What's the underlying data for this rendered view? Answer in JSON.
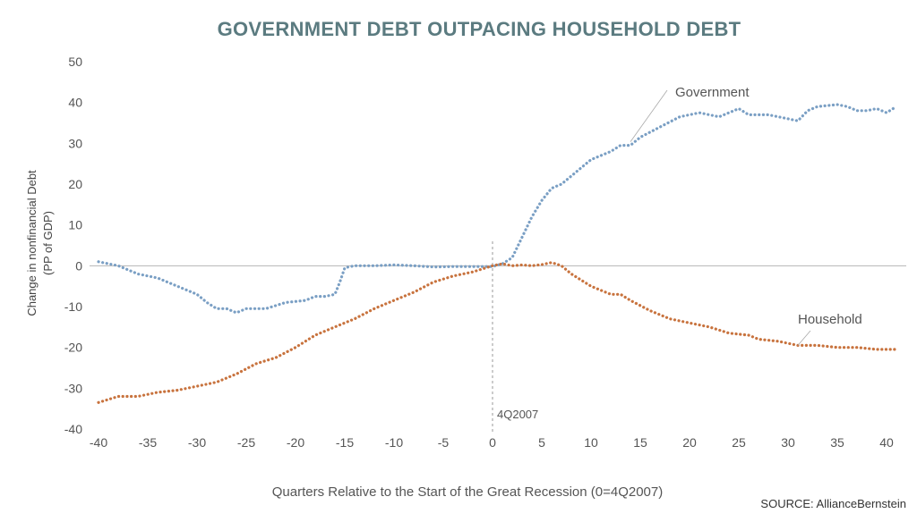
{
  "chart_data": {
    "type": "line",
    "title": "GOVERNMENT DEBT OUTPACING HOUSEHOLD DEBT",
    "ylabel_line1": "Change in nonfinancial Debt",
    "ylabel_line2": "(PP of GDP)",
    "xlabel": "Quarters Relative to the Start of the Great Recession (0=4Q2007)",
    "source": "SOURCE: AllianceBernstein",
    "xlim": [
      -41,
      42
    ],
    "ylim": [
      -40,
      50
    ],
    "x_ticks": [
      -40,
      -35,
      -30,
      -25,
      -20,
      -15,
      -10,
      -5,
      0,
      5,
      10,
      15,
      20,
      25,
      30,
      35,
      40
    ],
    "y_ticks": [
      50,
      40,
      30,
      20,
      10,
      0,
      -10,
      -20,
      -30,
      -40
    ],
    "zero_line": true,
    "annotation": {
      "x": 0,
      "label": "4Q2007"
    },
    "series": [
      {
        "name": "Government",
        "color": "#7a9fc4",
        "style": "dotted",
        "label_at_x": 14,
        "points": [
          [
            -40,
            1
          ],
          [
            -38,
            0
          ],
          [
            -36,
            -2
          ],
          [
            -34,
            -3
          ],
          [
            -32,
            -5
          ],
          [
            -30,
            -7
          ],
          [
            -29,
            -9
          ],
          [
            -28,
            -10.5
          ],
          [
            -27,
            -10.5
          ],
          [
            -26,
            -11.5
          ],
          [
            -25,
            -10.5
          ],
          [
            -23,
            -10.5
          ],
          [
            -21,
            -9
          ],
          [
            -19,
            -8.5
          ],
          [
            -18,
            -7.5
          ],
          [
            -17,
            -7.5
          ],
          [
            -16,
            -7
          ],
          [
            -15.5,
            -4
          ],
          [
            -15,
            -0.5
          ],
          [
            -14,
            0
          ],
          [
            -12,
            0
          ],
          [
            -10,
            0.2
          ],
          [
            -8,
            0
          ],
          [
            -6,
            -0.3
          ],
          [
            -4,
            -0.2
          ],
          [
            -2,
            -0.2
          ],
          [
            0,
            -0.2
          ],
          [
            1,
            0.5
          ],
          [
            2,
            2
          ],
          [
            3,
            7
          ],
          [
            4,
            12
          ],
          [
            5,
            16
          ],
          [
            6,
            19
          ],
          [
            7,
            20
          ],
          [
            8,
            22
          ],
          [
            9,
            24
          ],
          [
            10,
            26
          ],
          [
            12,
            28
          ],
          [
            13,
            29.5
          ],
          [
            14,
            29.5
          ],
          [
            15,
            31.5
          ],
          [
            17,
            34
          ],
          [
            19,
            36.5
          ],
          [
            20,
            37
          ],
          [
            21,
            37.5
          ],
          [
            23,
            36.5
          ],
          [
            24,
            37.5
          ],
          [
            25,
            38.5
          ],
          [
            26,
            37
          ],
          [
            28,
            37
          ],
          [
            30,
            36
          ],
          [
            31,
            35.5
          ],
          [
            32,
            38
          ],
          [
            33,
            39
          ],
          [
            35,
            39.5
          ],
          [
            36,
            39
          ],
          [
            37,
            38
          ],
          [
            38,
            38
          ],
          [
            39,
            38.5
          ],
          [
            40,
            37.5
          ],
          [
            41,
            39
          ]
        ]
      },
      {
        "name": "Household",
        "color": "#c8733e",
        "style": "dotted",
        "label_at_x": 31,
        "points": [
          [
            -40,
            -33.5
          ],
          [
            -38,
            -32
          ],
          [
            -36,
            -32
          ],
          [
            -34,
            -31
          ],
          [
            -32,
            -30.5
          ],
          [
            -30,
            -29.5
          ],
          [
            -28,
            -28.5
          ],
          [
            -26,
            -26.5
          ],
          [
            -24,
            -24
          ],
          [
            -22,
            -22.5
          ],
          [
            -20,
            -20
          ],
          [
            -18,
            -17
          ],
          [
            -16,
            -15
          ],
          [
            -14,
            -13
          ],
          [
            -12,
            -10.5
          ],
          [
            -10,
            -8.5
          ],
          [
            -8,
            -6.5
          ],
          [
            -6,
            -4
          ],
          [
            -4,
            -2.5
          ],
          [
            -2,
            -1.5
          ],
          [
            0,
            0
          ],
          [
            1,
            0.5
          ],
          [
            2,
            0
          ],
          [
            3,
            0.2
          ],
          [
            4,
            0
          ],
          [
            5,
            0.3
          ],
          [
            6,
            0.8
          ],
          [
            7,
            0
          ],
          [
            8,
            -2
          ],
          [
            10,
            -5
          ],
          [
            12,
            -7
          ],
          [
            13,
            -7
          ],
          [
            14,
            -8.5
          ],
          [
            16,
            -11
          ],
          [
            18,
            -13
          ],
          [
            20,
            -14
          ],
          [
            22,
            -15
          ],
          [
            24,
            -16.5
          ],
          [
            26,
            -17
          ],
          [
            27,
            -18
          ],
          [
            29,
            -18.5
          ],
          [
            31,
            -19.5
          ],
          [
            33,
            -19.5
          ],
          [
            35,
            -20
          ],
          [
            37,
            -20
          ],
          [
            39,
            -20.5
          ],
          [
            41,
            -20.5
          ]
        ]
      }
    ]
  }
}
